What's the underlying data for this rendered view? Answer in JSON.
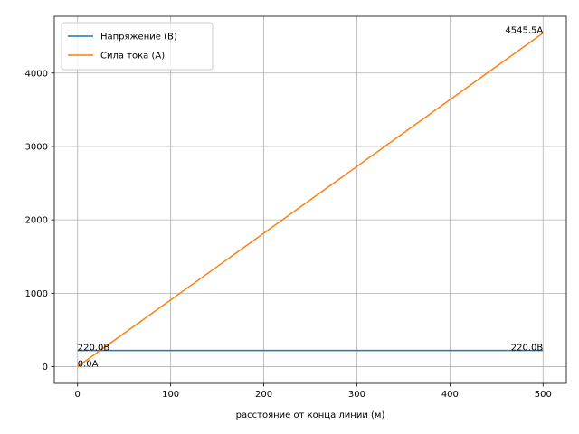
{
  "chart_data": {
    "type": "line",
    "title": "",
    "xlabel": "расстояние от конца линии (м)",
    "ylabel": "",
    "xlim": [
      -25,
      525
    ],
    "ylim": [
      -227.3,
      4772.8
    ],
    "xticks": [
      0,
      100,
      200,
      300,
      400,
      500
    ],
    "yticks": [
      0,
      1000,
      2000,
      3000,
      4000
    ],
    "grid": true,
    "legend_position": "top-left",
    "series": [
      {
        "name": "Напряжение (В)",
        "color": "#1f77b4",
        "x": [
          0,
          500
        ],
        "y": [
          220.0,
          220.0
        ]
      },
      {
        "name": "Сила тока (А)",
        "color": "#ff7f0e",
        "x": [
          0,
          500
        ],
        "y": [
          0.0,
          4545.5
        ]
      }
    ],
    "annotations": [
      {
        "text": "220.0В",
        "x": 0,
        "y": 220.0,
        "anchor": "start"
      },
      {
        "text": "220.0В",
        "x": 500,
        "y": 220.0,
        "anchor": "end"
      },
      {
        "text": "0.0А",
        "x": 0,
        "y": 0.0,
        "anchor": "start"
      },
      {
        "text": "4545.5А",
        "x": 500,
        "y": 4545.5,
        "anchor": "end"
      }
    ]
  }
}
